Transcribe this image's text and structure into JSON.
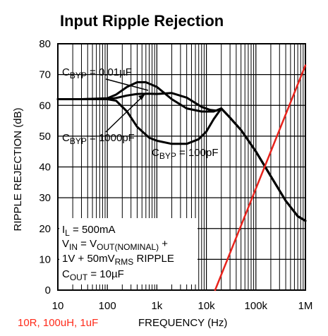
{
  "chart_data": {
    "type": "line",
    "title": "Input Ripple Rejection",
    "xlabel": "FREQUENCY (Hz)",
    "ylabel": "RIPPLE REJECTION (dB)",
    "x_scale": "log",
    "xlim": [
      10,
      1000000
    ],
    "ylim": [
      0,
      80
    ],
    "grid": true,
    "x_tick_values": [
      10,
      100,
      1000,
      10000,
      100000,
      1000000
    ],
    "x_tick_labels": [
      "10",
      "100",
      "1k",
      "10k",
      "100k",
      "1M"
    ],
    "y_tick_values": [
      0,
      10,
      20,
      30,
      40,
      50,
      60,
      70,
      80
    ],
    "y_tick_labels": [
      "0",
      "10",
      "20",
      "30",
      "40",
      "50",
      "60",
      "70",
      "80"
    ],
    "series": [
      {
        "name": "CBYP = 0.01µF",
        "color": "#000000",
        "x": [
          10,
          30,
          100,
          150,
          250,
          400,
          600,
          1000,
          2000,
          4000,
          8000,
          14000,
          20000,
          30000,
          50000,
          100000,
          200000,
          400000,
          700000,
          1000000
        ],
        "y": [
          62,
          62,
          62.3,
          63.5,
          66,
          67.5,
          67.5,
          66,
          62,
          59,
          58,
          58,
          59,
          56,
          52,
          45,
          37,
          29,
          24,
          22.5
        ]
      },
      {
        "name": "CBYP = 1000pF",
        "color": "#000000",
        "x": [
          10,
          30,
          100,
          150,
          250,
          400,
          700,
          1000,
          2000,
          4000,
          8000,
          12000,
          16000,
          20000,
          30000,
          50000,
          100000,
          200000,
          400000,
          700000,
          1000000
        ],
        "y": [
          62,
          62,
          62,
          62.4,
          63.2,
          63.7,
          63.8,
          63.7,
          64,
          62.5,
          59.5,
          58.5,
          58.3,
          59,
          56,
          52,
          45,
          37,
          29,
          24,
          22.5
        ]
      },
      {
        "name": "CBYP = 100pF",
        "color": "#000000",
        "x": [
          10,
          30,
          100,
          150,
          250,
          400,
          700,
          1000,
          2000,
          4000,
          7000,
          10000,
          14000,
          20000,
          30000,
          50000,
          100000,
          200000,
          400000,
          700000,
          1000000
        ],
        "y": [
          62,
          62,
          62,
          61.5,
          58,
          53,
          49.5,
          48.5,
          47.5,
          47.5,
          49,
          51.5,
          55.5,
          59,
          56,
          52,
          45,
          37,
          29,
          24,
          22.5
        ]
      },
      {
        "name": "10R, 100uH, 1uF",
        "color": "#e8231c",
        "x": [
          15000,
          1000000
        ],
        "y": [
          0,
          73
        ]
      }
    ],
    "annotations": {
      "cbyp_001": [
        "C",
        "BYP",
        " = 0.01µF"
      ],
      "cbyp_1000": [
        "C",
        "BYP",
        " = 1000pF"
      ],
      "cbyp_100": [
        "C",
        "BYP",
        " = 100pF"
      ],
      "il": [
        "I",
        "L",
        " = 500mA"
      ],
      "vin": [
        "V",
        "IN",
        " = V",
        "OUT(NOMINAL)",
        " +"
      ],
      "ripple": [
        "1V + 50mV",
        "RMS",
        " RIPPLE"
      ],
      "cout": [
        "C",
        "OUT",
        " = 10µF"
      ]
    },
    "note": "10R, 100uH, 1uF"
  }
}
